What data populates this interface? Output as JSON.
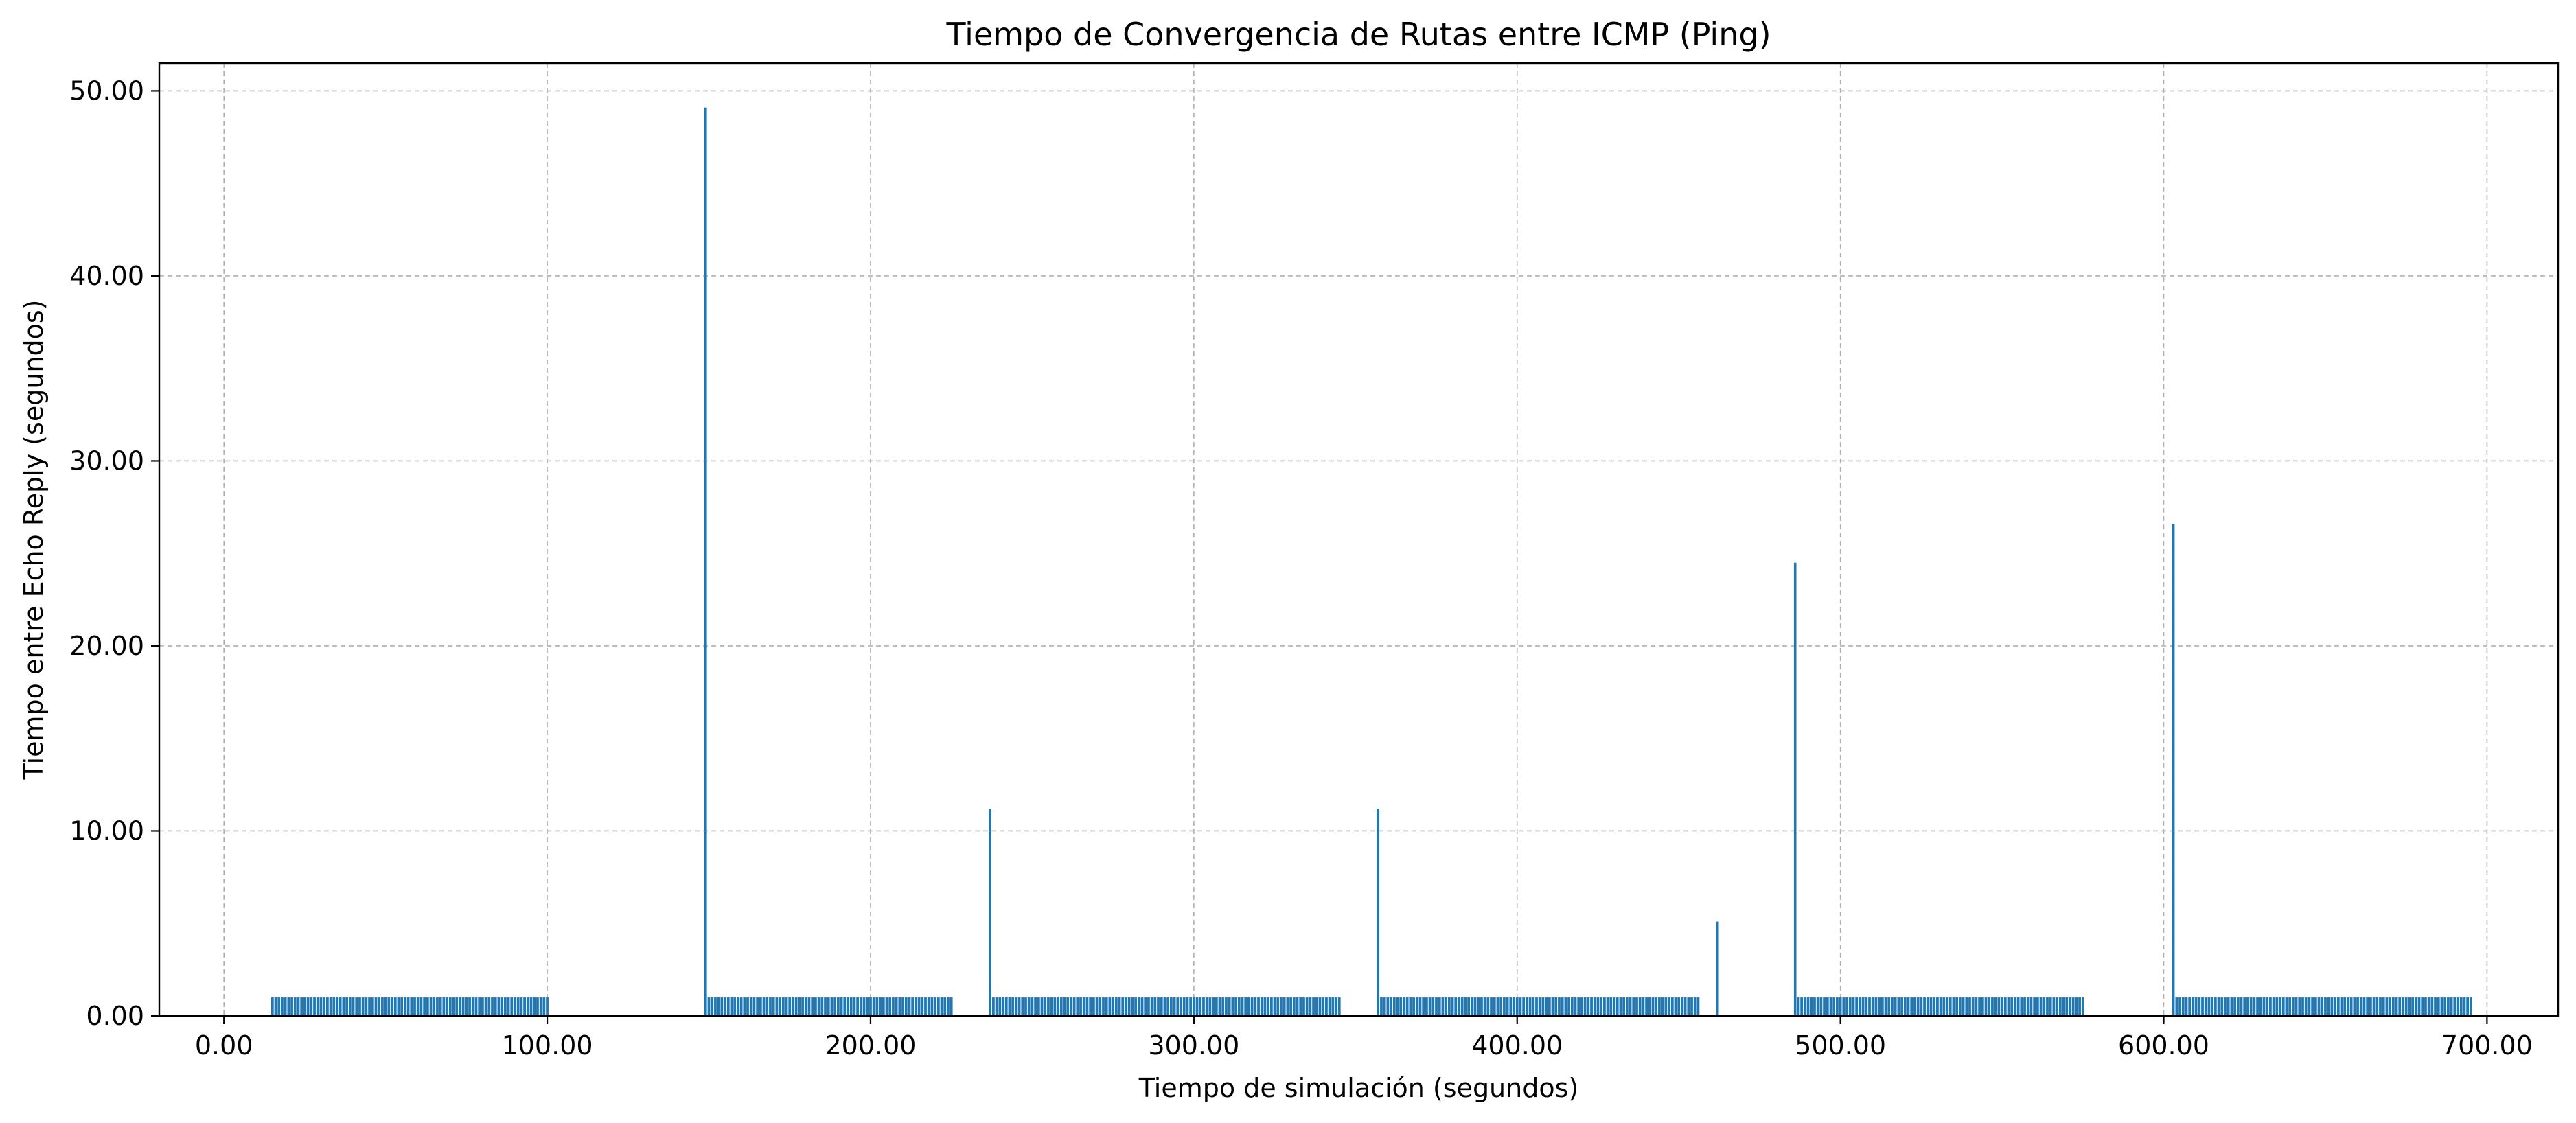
{
  "chart_data": {
    "type": "bar",
    "title": "Tiempo de Convergencia de Rutas entre ICMP (Ping)",
    "xlabel": "Tiempo de simulación (segundos)",
    "ylabel": "Tiempo entre Echo Reply (segundos)",
    "xlim": [
      -20,
      722
    ],
    "ylim": [
      0,
      51.5
    ],
    "xticks": [
      0,
      100,
      200,
      300,
      400,
      500,
      600,
      700
    ],
    "yticks": [
      0,
      10,
      20,
      30,
      40,
      50
    ],
    "xtick_labels": [
      "0.00",
      "100.00",
      "200.00",
      "300.00",
      "400.00",
      "500.00",
      "600.00",
      "700.00"
    ],
    "ytick_labels": [
      "0.00",
      "10.00",
      "20.00",
      "30.00",
      "40.00",
      "50.00"
    ],
    "grid": true,
    "color": "#1f77b4",
    "bar_width": 0.8,
    "runs": [
      {
        "start": 15,
        "end": 100,
        "step": 1,
        "value": 1.0
      },
      {
        "start": 150,
        "end": 225,
        "step": 1,
        "value": 1.0
      },
      {
        "start": 238,
        "end": 345,
        "step": 1,
        "value": 1.0
      },
      {
        "start": 358,
        "end": 456,
        "step": 1,
        "value": 1.0
      },
      {
        "start": 487,
        "end": 575,
        "step": 1,
        "value": 1.0
      },
      {
        "start": 604,
        "end": 695,
        "step": 1,
        "value": 1.0
      }
    ],
    "spikes": [
      {
        "x": 149,
        "value": 49.1
      },
      {
        "x": 237,
        "value": 11.2
      },
      {
        "x": 357,
        "value": 11.2
      },
      {
        "x": 462,
        "value": 5.1
      },
      {
        "x": 486,
        "value": 24.5
      },
      {
        "x": 603,
        "value": 26.6
      }
    ]
  }
}
